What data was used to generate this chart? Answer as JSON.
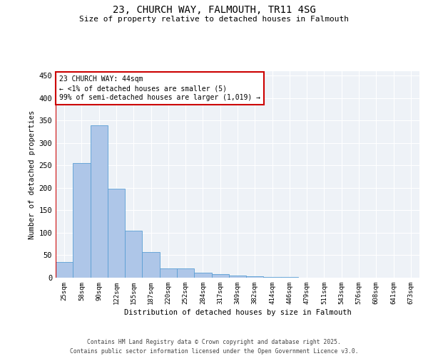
{
  "title": "23, CHURCH WAY, FALMOUTH, TR11 4SG",
  "subtitle": "Size of property relative to detached houses in Falmouth",
  "xlabel": "Distribution of detached houses by size in Falmouth",
  "ylabel": "Number of detached properties",
  "footer_line1": "Contains HM Land Registry data © Crown copyright and database right 2025.",
  "footer_line2": "Contains public sector information licensed under the Open Government Licence v3.0.",
  "annotation_title": "23 CHURCH WAY: 44sqm",
  "annotation_line2": "← <1% of detached houses are smaller (5)",
  "annotation_line3": "99% of semi-detached houses are larger (1,019) →",
  "bar_color": "#aec6e8",
  "bar_edge_color": "#5a9fd4",
  "marker_color": "#cc0000",
  "annotation_box_color": "#cc0000",
  "background_color": "#eef2f7",
  "categories": [
    "25sqm",
    "58sqm",
    "90sqm",
    "122sqm",
    "155sqm",
    "187sqm",
    "220sqm",
    "252sqm",
    "284sqm",
    "317sqm",
    "349sqm",
    "382sqm",
    "414sqm",
    "446sqm",
    "479sqm",
    "511sqm",
    "543sqm",
    "576sqm",
    "608sqm",
    "641sqm",
    "673sqm"
  ],
  "values": [
    35,
    255,
    340,
    198,
    105,
    57,
    20,
    20,
    11,
    8,
    5,
    3,
    2,
    1,
    0,
    0,
    0,
    0,
    0,
    0,
    0
  ],
  "ylim": [
    0,
    460
  ],
  "yticks": [
    0,
    50,
    100,
    150,
    200,
    250,
    300,
    350,
    400,
    450
  ]
}
